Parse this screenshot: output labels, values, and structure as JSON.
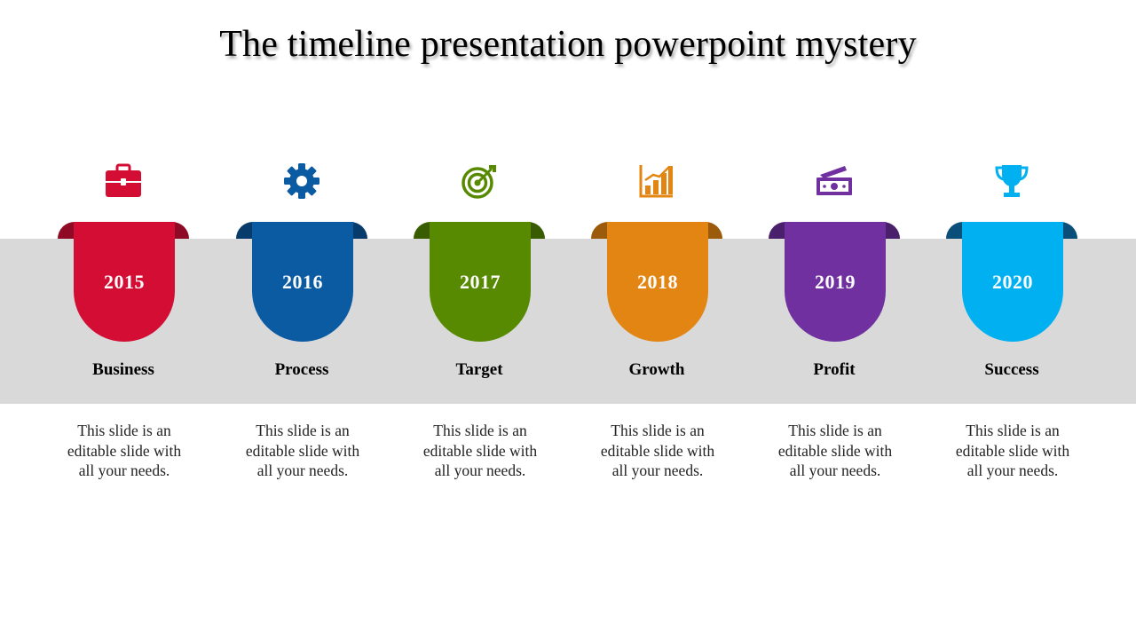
{
  "title": "The timeline presentation powerpoint mystery",
  "colors": {
    "band": "#d9d9d9"
  },
  "milestones": [
    {
      "year": "2015",
      "label": "Business",
      "description": "This slide is an editable slide with all your needs.",
      "icon": "briefcase-icon",
      "color": "#d30d33",
      "dark": "#8f0a24"
    },
    {
      "year": "2016",
      "label": "Process",
      "description": "This slide is an editable slide with all your needs.",
      "icon": "gear-icon",
      "color": "#0b5ba3",
      "dark": "#073b6b"
    },
    {
      "year": "2017",
      "label": "Target",
      "description": "This slide is an editable slide with all your needs.",
      "icon": "target-icon",
      "color": "#578a00",
      "dark": "#3a5c00"
    },
    {
      "year": "2018",
      "label": "Growth",
      "description": "This slide is an editable slide with all your needs.",
      "icon": "bar-chart-icon",
      "color": "#e38512",
      "dark": "#9c5a0b"
    },
    {
      "year": "2019",
      "label": "Profit",
      "description": "This slide is an editable slide with all your needs.",
      "icon": "money-icon",
      "color": "#7030a0",
      "dark": "#4a1f6b"
    },
    {
      "year": "2020",
      "label": "Success",
      "description": "This slide is an editable slide with all your needs.",
      "icon": "trophy-icon",
      "color": "#00b0f0",
      "dark": "#0a4f7a"
    }
  ]
}
